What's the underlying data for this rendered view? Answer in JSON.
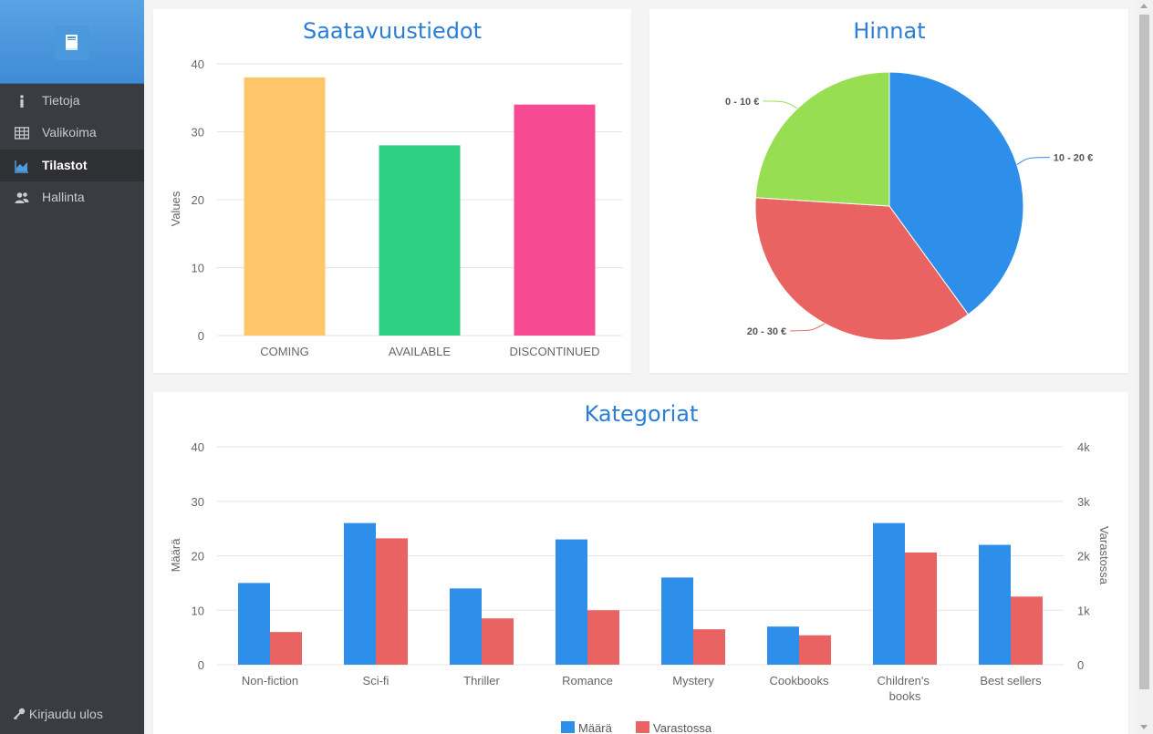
{
  "app": {
    "logo_icon": "book-icon"
  },
  "sidebar": {
    "items": [
      {
        "label": "Tietoja",
        "icon": "info-icon",
        "active": false
      },
      {
        "label": "Valikoima",
        "icon": "table-icon",
        "active": false
      },
      {
        "label": "Tilastot",
        "icon": "area-chart-icon",
        "active": true
      },
      {
        "label": "Hallinta",
        "icon": "users-icon",
        "active": false
      }
    ],
    "logout_label": "Kirjaudu ulos",
    "logout_icon": "key-icon"
  },
  "colors": {
    "sidebar_bg": "#393c41",
    "header_blue": "#4a97dc",
    "title_blue": "#2a7fd4",
    "coming": "#ffc66c",
    "available": "#2ecf82",
    "discontinued": "#f64b93",
    "blue_series": "#2e8fea",
    "red_series": "#ea6363",
    "green_slice": "#97de52"
  },
  "chart_data": [
    {
      "type": "bar",
      "title": "Saatavuustiedot",
      "categories": [
        "COMING",
        "AVAILABLE",
        "DISCONTINUED"
      ],
      "values": [
        38,
        28,
        34
      ],
      "ylabel": "Values",
      "ylim": [
        0,
        40
      ],
      "yticks": [
        0,
        10,
        20,
        30,
        40
      ],
      "grid": true
    },
    {
      "type": "pie",
      "title": "Hinnat",
      "slices": [
        {
          "label": "10 - 20 €",
          "value": 40
        },
        {
          "label": "20 - 30 €",
          "value": 36
        },
        {
          "label": "0 - 10 €",
          "value": 24
        }
      ]
    },
    {
      "type": "bar",
      "title": "Kategoriat",
      "categories": [
        "Non-fiction",
        "Sci-fi",
        "Thriller",
        "Romance",
        "Mystery",
        "Cookbooks",
        "Children's books",
        "Best sellers"
      ],
      "series": [
        {
          "name": "Määrä",
          "axis": "left",
          "values": [
            15,
            26,
            14,
            23,
            16,
            7,
            26,
            22
          ]
        },
        {
          "name": "Varastossa",
          "axis": "right",
          "values": [
            600,
            2320,
            850,
            1000,
            650,
            540,
            2060,
            1250
          ]
        }
      ],
      "ylabel": "Määrä",
      "ylim": [
        0,
        40
      ],
      "yticks": [
        "0",
        "10",
        "20",
        "30",
        "40"
      ],
      "y2label": "Varastossa",
      "y2lim": [
        0,
        4000
      ],
      "y2ticks": [
        "0",
        "1k",
        "2k",
        "3k",
        "4k"
      ],
      "legend": "bottom",
      "grid": true
    }
  ]
}
